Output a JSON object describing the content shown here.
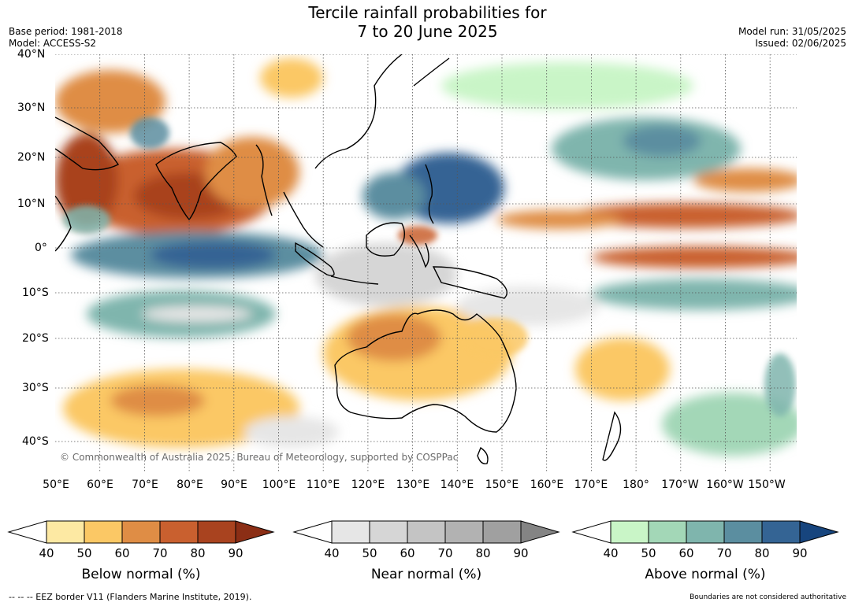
{
  "title_line1": "Tercile rainfall probabilities for",
  "title_line2": "7 to 20 June 2025",
  "base_period": "Base period: 1981-2018",
  "model": "Model: ACCESS-S2",
  "model_run": "Model run: 31/05/2025",
  "issued": "Issued: 02/06/2025",
  "copyright": "© Commonwealth of Australia 2025, Bureau of Meteorology, supported by COSPPac",
  "lat_labels": [
    "40°N",
    "30°N",
    "20°N",
    "10°N",
    "0°",
    "10°S",
    "20°S",
    "30°S",
    "40°S"
  ],
  "lon_labels": [
    "50°E",
    "60°E",
    "70°E",
    "80°E",
    "90°E",
    "100°E",
    "110°E",
    "120°E",
    "130°E",
    "140°E",
    "150°E",
    "160°E",
    "170°E",
    "180°",
    "170°W",
    "160°W",
    "150°W"
  ],
  "legends": [
    {
      "title": "Below normal (%)",
      "ticks": [
        "40",
        "50",
        "60",
        "70",
        "80",
        "90"
      ],
      "colors": [
        "#fde9a3",
        "#fbc865",
        "#df8d45",
        "#c9602f",
        "#a9431f",
        "#8b2e15"
      ]
    },
    {
      "title": "Near normal (%)",
      "ticks": [
        "40",
        "50",
        "60",
        "70",
        "80",
        "90"
      ],
      "colors": [
        "#e6e6e6",
        "#d6d6d6",
        "#c4c4c4",
        "#b2b2b2",
        "#a0a0a0",
        "#848484"
      ]
    },
    {
      "title": "Above normal (%)",
      "ticks": [
        "40",
        "50",
        "60",
        "70",
        "80",
        "90"
      ],
      "colors": [
        "#c9f5c7",
        "#a3d7b7",
        "#7fb5ad",
        "#5b8ea0",
        "#346494",
        "#17457e"
      ]
    }
  ],
  "footer_left": "--  --  -- EEZ border V11 (Flanders Marine Institute, 2019).",
  "footer_right": "Boundaries are not considered authoritative"
}
